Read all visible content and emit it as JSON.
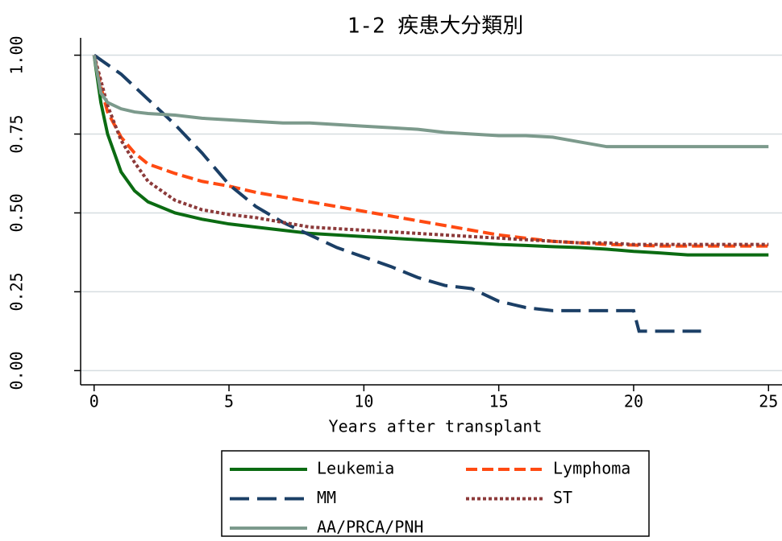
{
  "chart_data": {
    "type": "line",
    "title": "1-2 疾患大分類別",
    "x_label": "Years after transplant",
    "x": [
      0,
      0.25,
      0.5,
      1,
      1.5,
      2,
      3,
      4,
      5,
      6,
      7,
      8,
      9,
      10,
      11,
      12,
      13,
      14,
      15,
      16,
      17,
      18,
      19,
      20,
      20.2,
      21,
      22,
      22.5,
      23,
      24,
      25
    ],
    "series": [
      {
        "name": "Leukemia",
        "color": "#0b6b12",
        "line_style": "solid",
        "values": [
          1.0,
          0.85,
          0.75,
          0.63,
          0.57,
          0.535,
          0.5,
          0.48,
          0.465,
          0.455,
          0.445,
          0.435,
          0.43,
          0.425,
          0.42,
          0.415,
          0.41,
          0.405,
          0.4,
          0.397,
          0.393,
          0.39,
          0.385,
          0.378,
          0.377,
          0.373,
          0.367,
          0.367,
          0.367,
          0.367,
          0.367
        ]
      },
      {
        "name": "Lymphoma",
        "color": "#ff4a12",
        "line_style": "dash",
        "values": [
          1.0,
          0.9,
          0.82,
          0.74,
          0.69,
          0.655,
          0.625,
          0.6,
          0.585,
          0.565,
          0.55,
          0.535,
          0.52,
          0.505,
          0.49,
          0.475,
          0.46,
          0.445,
          0.43,
          0.42,
          0.41,
          0.405,
          0.4,
          0.398,
          0.397,
          0.395,
          0.395,
          0.395,
          0.395,
          0.395,
          0.395
        ]
      },
      {
        "name": "MM",
        "color": "#1b3f66",
        "line_style": "longdash",
        "values": [
          1.0,
          0.985,
          0.97,
          0.94,
          0.9,
          0.86,
          0.78,
          0.69,
          0.59,
          0.52,
          0.47,
          0.43,
          0.39,
          0.36,
          0.33,
          0.295,
          0.27,
          0.26,
          0.22,
          0.2,
          0.19,
          0.19,
          0.19,
          0.19,
          0.125,
          0.125,
          0.125,
          0.125,
          null,
          null,
          null
        ]
      },
      {
        "name": "ST",
        "color": "#8c3a3a",
        "line_style": "dot",
        "values": [
          1.0,
          0.92,
          0.84,
          0.73,
          0.66,
          0.6,
          0.54,
          0.51,
          0.495,
          0.485,
          0.47,
          0.455,
          0.45,
          0.445,
          0.44,
          0.435,
          0.43,
          0.425,
          0.42,
          0.415,
          0.41,
          0.405,
          0.405,
          0.4,
          0.4,
          0.4,
          0.4,
          0.4,
          0.4,
          0.4,
          0.4
        ]
      },
      {
        "name": "AA/PRCA/PNH",
        "color": "#7c9a8c",
        "line_style": "solid",
        "values": [
          1.0,
          0.88,
          0.85,
          0.83,
          0.82,
          0.815,
          0.81,
          0.8,
          0.795,
          0.79,
          0.785,
          0.785,
          0.78,
          0.775,
          0.77,
          0.765,
          0.755,
          0.75,
          0.745,
          0.745,
          0.74,
          0.725,
          0.71,
          0.71,
          0.71,
          0.71,
          0.71,
          0.71,
          0.71,
          0.71,
          0.71
        ]
      }
    ],
    "xlim": [
      -0.5,
      25.5
    ],
    "xticks": [
      0,
      5,
      10,
      15,
      20,
      25
    ],
    "ylim": [
      -0.045,
      1.055
    ],
    "yticks": [
      {
        "value": 0,
        "label": "0.00"
      },
      {
        "value": 0.25,
        "label": "0.25"
      },
      {
        "value": 0.5,
        "label": "0.50"
      },
      {
        "value": 0.75,
        "label": "0.75"
      },
      {
        "value": 1,
        "label": "1.00"
      }
    ],
    "grid": true,
    "legend": "bottom"
  }
}
